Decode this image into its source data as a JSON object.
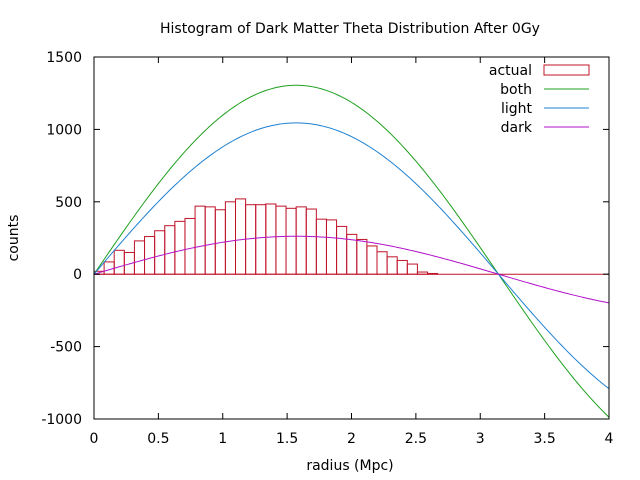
{
  "chart_data": {
    "type": "bar",
    "title": "Histogram of Dark Matter Theta Distribution After 0Gy",
    "xlabel": "radius (Mpc)",
    "ylabel": "counts",
    "xlim": [
      0,
      4
    ],
    "ylim": [
      -1000,
      1500
    ],
    "xticks": [
      "0",
      "0.5",
      "1",
      "1.5",
      "2",
      "2.5",
      "3",
      "3.5",
      "4"
    ],
    "yticks": [
      "1500",
      "1000",
      "500",
      "0",
      "-500",
      "-1000"
    ],
    "grid": false,
    "legend_position": "top-right",
    "colors": {
      "actual": "#c0142a",
      "both": "#1ea01e",
      "light": "#1e80d0",
      "dark": "#b010c8"
    },
    "histogram": {
      "name": "actual",
      "bin_start": 0,
      "bin_width": 0.0785,
      "values": [
        20,
        85,
        165,
        150,
        230,
        260,
        300,
        335,
        365,
        385,
        470,
        465,
        445,
        500,
        520,
        480,
        480,
        485,
        470,
        455,
        465,
        450,
        380,
        375,
        330,
        275,
        240,
        195,
        155,
        120,
        95,
        70,
        15,
        5
      ]
    },
    "series": [
      {
        "name": "both",
        "function": "A*sin(x)",
        "amplitude": 1305
      },
      {
        "name": "light",
        "function": "A*sin(x)",
        "amplitude": 1045
      },
      {
        "name": "dark",
        "function": "A*sin(x)",
        "amplitude": 262
      }
    ]
  }
}
